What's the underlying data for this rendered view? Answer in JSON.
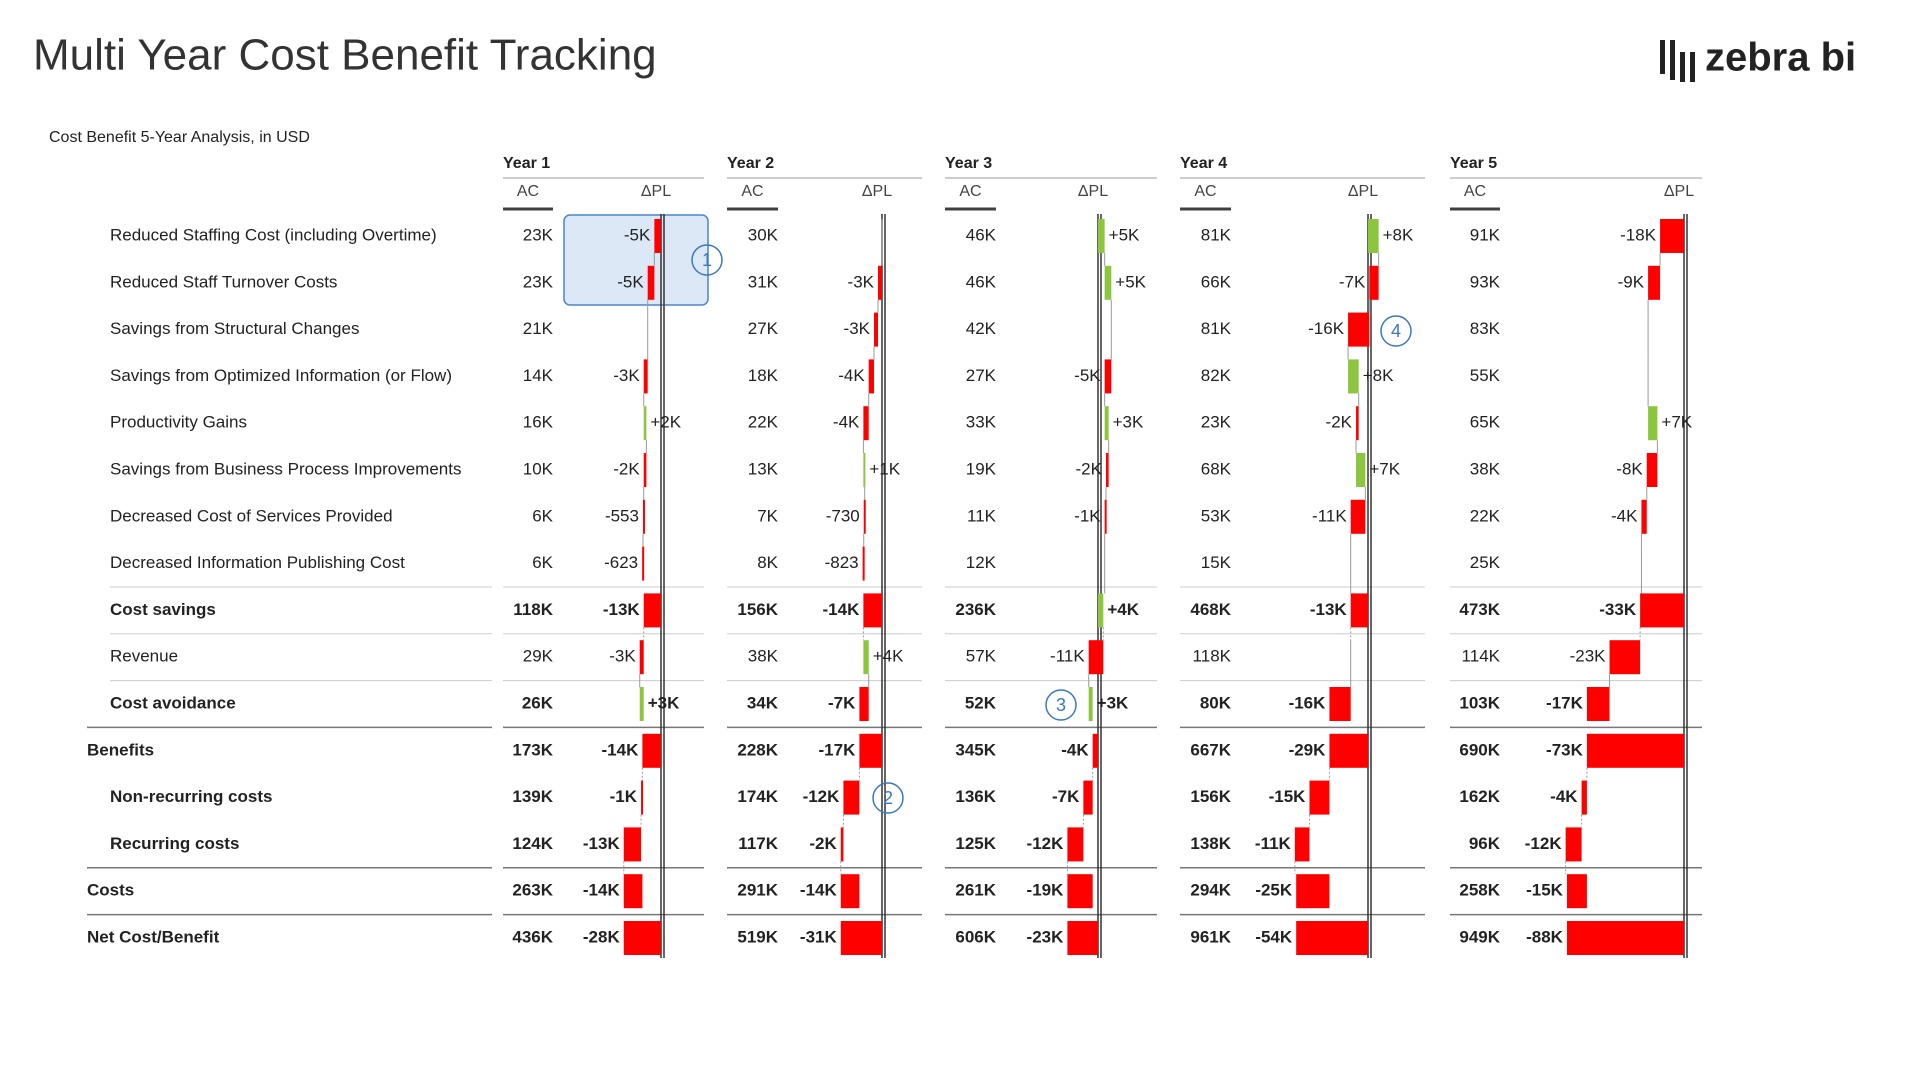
{
  "header": {
    "title": "Multi Year Cost Benefit Tracking",
    "logo": "zebra bi"
  },
  "subtitle": "Cost Benefit 5-Year Analysis, in USD",
  "columns": {
    "ac": "AC",
    "dpl": "ΔPL"
  },
  "rows": [
    "Reduced Staffing Cost (including Overtime)",
    "Reduced Staff Turnover Costs",
    "Savings from Structural Changes",
    "Savings from Optimized Information (or Flow)",
    "Productivity Gains",
    "Savings from Business Process Improvements",
    "Decreased Cost of Services Provided",
    "Decreased Information Publishing Cost",
    "Cost savings",
    "Revenue",
    "Cost avoidance",
    "Benefits",
    "Non-recurring costs",
    "Recurring costs",
    "Costs",
    "Net Cost/Benefit"
  ],
  "years": [
    {
      "name": "Year 1",
      "ac": [
        "23K",
        "23K",
        "21K",
        "14K",
        "16K",
        "10K",
        "6K",
        "6K",
        "118K",
        "29K",
        "26K",
        "173K",
        "139K",
        "124K",
        "263K",
        "436K"
      ],
      "dpl": [
        -5000,
        -5000,
        null,
        -3000,
        2000,
        -2000,
        -553,
        -623,
        -13000,
        -3000,
        3000,
        -14000,
        -1000,
        -13000,
        -14000,
        -28000
      ],
      "dpl_labels": [
        "-5K",
        "-5K",
        null,
        "-3K",
        "+2K",
        "-2K",
        "-553",
        "-623",
        "-13K",
        "-3K",
        "+3K",
        "-14K",
        "-1K",
        "-13K",
        "-14K",
        "-28K"
      ]
    },
    {
      "name": "Year 2",
      "ac": [
        "30K",
        "31K",
        "27K",
        "18K",
        "22K",
        "13K",
        "7K",
        "8K",
        "156K",
        "38K",
        "34K",
        "228K",
        "174K",
        "117K",
        "291K",
        "519K"
      ],
      "dpl": [
        null,
        -3000,
        -3000,
        -4000,
        -4000,
        1000,
        -730,
        -823,
        -14000,
        4000,
        -7000,
        -17000,
        -12000,
        -2000,
        -14000,
        -31000
      ],
      "dpl_labels": [
        null,
        "-3K",
        "-3K",
        "-4K",
        "-4K",
        "+1K",
        "-730",
        "-823",
        "-14K",
        "+4K",
        "-7K",
        "-17K",
        "-12K",
        "-2K",
        "-14K",
        "-31K"
      ]
    },
    {
      "name": "Year 3",
      "ac": [
        "46K",
        "46K",
        "42K",
        "27K",
        "33K",
        "19K",
        "11K",
        "12K",
        "236K",
        "57K",
        "52K",
        "345K",
        "136K",
        "125K",
        "261K",
        "606K"
      ],
      "dpl": [
        5000,
        5000,
        null,
        -5000,
        3000,
        -2000,
        -1000,
        null,
        4000,
        -11000,
        3000,
        -4000,
        -7000,
        -12000,
        -19000,
        -23000
      ],
      "dpl_labels": [
        "+5K",
        "+5K",
        null,
        "-5K",
        "+3K",
        "-2K",
        "-1K",
        null,
        "+4K",
        "-11K",
        "+3K",
        "-4K",
        "-7K",
        "-12K",
        "-19K",
        "-23K"
      ]
    },
    {
      "name": "Year 4",
      "ac": [
        "81K",
        "66K",
        "81K",
        "82K",
        "23K",
        "68K",
        "53K",
        "15K",
        "468K",
        "118K",
        "80K",
        "667K",
        "156K",
        "138K",
        "294K",
        "961K"
      ],
      "dpl": [
        8000,
        -7000,
        -16000,
        8000,
        -2000,
        7000,
        -11000,
        null,
        -13000,
        null,
        -16000,
        -29000,
        -15000,
        -11000,
        -25000,
        -54000
      ],
      "dpl_labels": [
        "+8K",
        "-7K",
        "-16K",
        "+8K",
        "-2K",
        "+7K",
        "-11K",
        null,
        "-13K",
        null,
        "-16K",
        "-29K",
        "-15K",
        "-11K",
        "-25K",
        "-54K"
      ]
    },
    {
      "name": "Year 5",
      "ac": [
        "91K",
        "93K",
        "83K",
        "55K",
        "65K",
        "38K",
        "22K",
        "25K",
        "473K",
        "114K",
        "103K",
        "690K",
        "162K",
        "96K",
        "258K",
        "949K"
      ],
      "dpl": [
        -18000,
        -9000,
        null,
        null,
        7000,
        -8000,
        -4000,
        null,
        -33000,
        -23000,
        -17000,
        -73000,
        -4000,
        -12000,
        -15000,
        -88000
      ],
      "dpl_labels": [
        "-18K",
        "-9K",
        null,
        null,
        "+7K",
        "-8K",
        "-4K",
        null,
        "-33K",
        "-23K",
        "-17K",
        "-73K",
        "-4K",
        "-12K",
        "-15K",
        "-88K"
      ]
    }
  ],
  "colors": {
    "negative": "#ff0000",
    "positive": "#8cc63f"
  },
  "annotations": [
    "1",
    "2",
    "3",
    "4"
  ]
}
